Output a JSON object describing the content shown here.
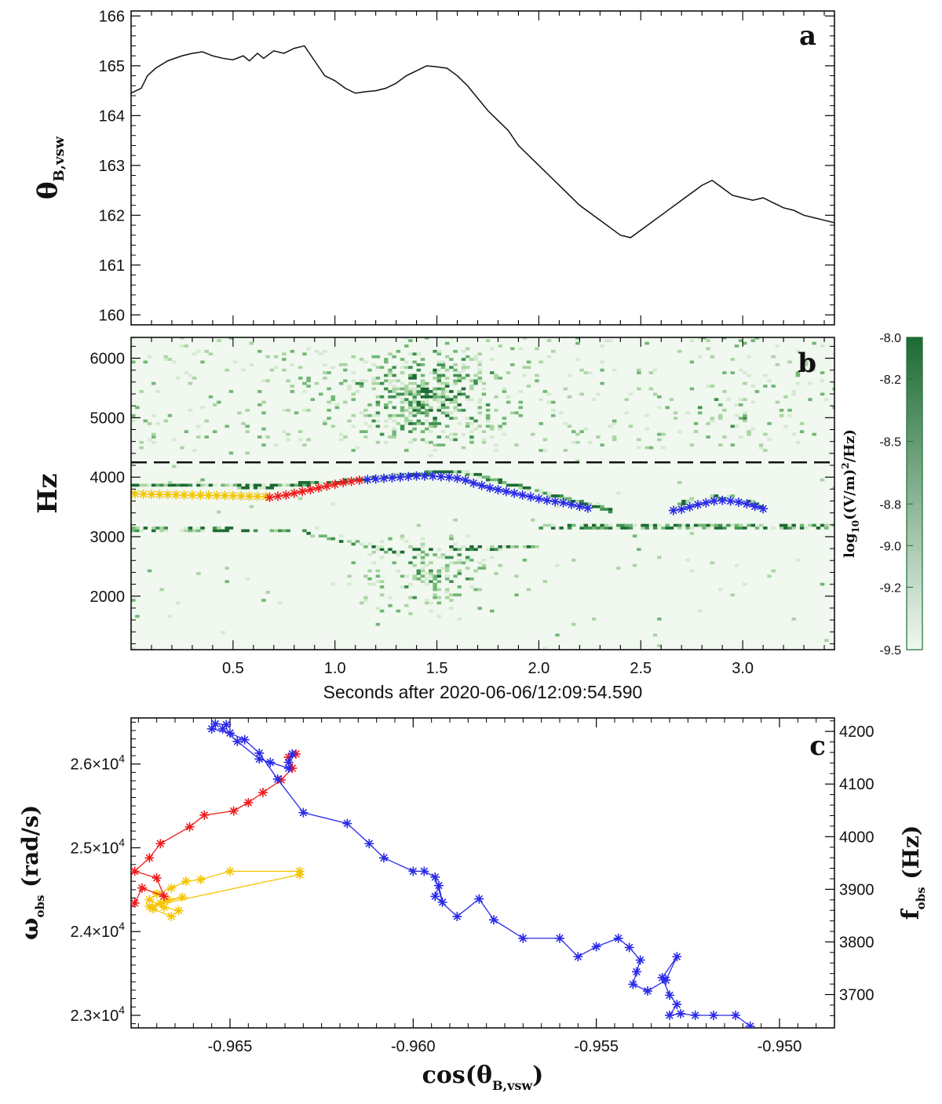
{
  "figure": {
    "panel_labels": [
      "a",
      "b",
      "c"
    ]
  },
  "chart_data": [
    {
      "id": "a",
      "type": "line",
      "ylabel": "θB,vsw",
      "ylabel_main": "θ",
      "ylabel_sub": "B,vsw",
      "xlim": [
        0,
        3.45
      ],
      "ylim": [
        159.8,
        166.1
      ],
      "xticks": [
        0.5,
        1.0,
        1.5,
        2.0,
        2.5,
        3.0
      ],
      "yticks": [
        160,
        161,
        162,
        163,
        164,
        165,
        166
      ],
      "series": [
        {
          "name": "theta",
          "x": [
            0.0,
            0.05,
            0.08,
            0.12,
            0.18,
            0.25,
            0.3,
            0.35,
            0.4,
            0.45,
            0.5,
            0.55,
            0.58,
            0.62,
            0.65,
            0.7,
            0.75,
            0.8,
            0.85,
            0.9,
            0.95,
            1.0,
            1.05,
            1.1,
            1.15,
            1.2,
            1.25,
            1.3,
            1.35,
            1.4,
            1.45,
            1.5,
            1.55,
            1.6,
            1.65,
            1.7,
            1.75,
            1.8,
            1.85,
            1.9,
            1.95,
            2.0,
            2.05,
            2.1,
            2.15,
            2.2,
            2.25,
            2.3,
            2.35,
            2.4,
            2.45,
            2.5,
            2.55,
            2.6,
            2.65,
            2.7,
            2.75,
            2.8,
            2.85,
            2.9,
            2.95,
            3.0,
            3.05,
            3.1,
            3.15,
            3.2,
            3.25,
            3.3,
            3.35,
            3.4,
            3.45
          ],
          "values": [
            164.45,
            164.55,
            164.8,
            164.95,
            165.1,
            165.2,
            165.25,
            165.28,
            165.2,
            165.15,
            165.12,
            165.2,
            165.1,
            165.25,
            165.15,
            165.3,
            165.25,
            165.35,
            165.4,
            165.1,
            164.8,
            164.7,
            164.55,
            164.45,
            164.48,
            164.5,
            164.55,
            164.65,
            164.8,
            164.9,
            165.0,
            164.98,
            164.95,
            164.8,
            164.6,
            164.35,
            164.1,
            163.9,
            163.7,
            163.4,
            163.2,
            163.0,
            162.8,
            162.6,
            162.4,
            162.2,
            162.05,
            161.9,
            161.75,
            161.6,
            161.55,
            161.7,
            161.85,
            162.0,
            162.15,
            162.3,
            162.45,
            162.6,
            162.7,
            162.55,
            162.4,
            162.35,
            162.3,
            162.35,
            162.25,
            162.15,
            162.1,
            162.0,
            161.95,
            161.9,
            161.85
          ]
        }
      ]
    },
    {
      "id": "b",
      "type": "heatmap",
      "ylabel": "Hz",
      "xlabel": "Seconds after 2020-06-06/12:09:54.590",
      "xlim": [
        0,
        3.45
      ],
      "ylim": [
        1100,
        6350
      ],
      "xticks": [
        0.5,
        1.0,
        1.5,
        2.0,
        2.5,
        3.0
      ],
      "xticklabels": [
        "0.5",
        "1.0",
        "1.5",
        "2.0",
        "2.5",
        "3.0"
      ],
      "yticks": [
        2000,
        3000,
        4000,
        5000,
        6000
      ],
      "dashed_line_hz": 4250,
      "colorbar": {
        "label": "log10((V/m)²/Hz)",
        "label_prefix": "log",
        "label_sub": "10",
        "label_rest": "((V/m)",
        "label_sup": "2",
        "label_end": "/Hz)",
        "range": [
          -9.5,
          -8.0
        ],
        "ticks": [
          -8.0,
          -8.2,
          -8.5,
          -8.8,
          -9.0,
          -9.2,
          -9.5
        ],
        "ticklabels": [
          "-8.0",
          "-8.2",
          "-8.5",
          "-8.8",
          "-9.0",
          "-9.2",
          "-9.5"
        ],
        "colors": [
          "#f0f8ef",
          "#1d6b34"
        ]
      },
      "markers": [
        {
          "color": "#f5c400",
          "t": [
            0.02,
            0.06,
            0.1,
            0.14,
            0.18,
            0.22,
            0.26,
            0.3,
            0.34,
            0.38,
            0.42,
            0.46,
            0.5,
            0.54,
            0.58,
            0.62,
            0.66
          ],
          "hz": [
            3720,
            3715,
            3712,
            3710,
            3708,
            3705,
            3700,
            3700,
            3698,
            3695,
            3692,
            3690,
            3688,
            3685,
            3680,
            3678,
            3675
          ]
        },
        {
          "color": "#ee1c1c",
          "t": [
            0.68,
            0.72,
            0.76,
            0.8,
            0.84,
            0.88,
            0.92,
            0.96,
            1.0,
            1.04,
            1.08,
            1.12
          ],
          "hz": [
            3660,
            3680,
            3700,
            3730,
            3760,
            3790,
            3820,
            3850,
            3880,
            3910,
            3930,
            3950
          ]
        },
        {
          "color": "#2a2ae8",
          "t": [
            1.16,
            1.2,
            1.24,
            1.28,
            1.32,
            1.36,
            1.4,
            1.44,
            1.48,
            1.52,
            1.56,
            1.6,
            1.64,
            1.68,
            1.72,
            1.76,
            1.8,
            1.84,
            1.88,
            1.92,
            1.96,
            2.0,
            2.04,
            2.08,
            2.12,
            2.16,
            2.2,
            2.24
          ],
          "hz": [
            3960,
            3970,
            3980,
            3990,
            4000,
            4010,
            4020,
            4020,
            4020,
            4010,
            4000,
            3980,
            3950,
            3900,
            3860,
            3820,
            3790,
            3760,
            3730,
            3700,
            3670,
            3640,
            3610,
            3590,
            3570,
            3540,
            3510,
            3480
          ]
        },
        {
          "color": "#2a2ae8",
          "t": [
            2.66,
            2.7,
            2.74,
            2.78,
            2.82,
            2.86,
            2.9,
            2.94,
            2.98,
            3.02,
            3.06,
            3.1
          ],
          "hz": [
            3440,
            3460,
            3500,
            3540,
            3570,
            3600,
            3610,
            3600,
            3580,
            3550,
            3510,
            3470
          ]
        }
      ]
    },
    {
      "id": "c",
      "type": "scatter",
      "xlabel": "cos(θB,vsw)",
      "xlabel_main": "cos(θ",
      "xlabel_sub": "B,vsw",
      "xlabel_end": ")",
      "ylabel": "ωobs (rad/s)",
      "ylabel_main": "ω",
      "ylabel_sub": "obs",
      "ylabel_rest": " (rad/s)",
      "y2label": "fobs (Hz)",
      "y2label_main": "f",
      "y2label_sub": "obs",
      "y2label_rest": " (Hz)",
      "xlim": [
        -0.9677,
        -0.9485
      ],
      "ylim": [
        22850,
        26550
      ],
      "xticks": [
        -0.965,
        -0.96,
        -0.955,
        -0.95
      ],
      "xticklabels": [
        "-0.965",
        "-0.960",
        "-0.955",
        "-0.950"
      ],
      "yticks": [
        23000,
        24000,
        25000,
        26000
      ],
      "yticklabels_mantissa": [
        "2.3",
        "2.4",
        "2.5",
        "2.6"
      ],
      "yticklabels_base": "×10",
      "yticklabels_exp": "4",
      "y2ticks": [
        3700,
        3800,
        3900,
        4000,
        4100,
        4200
      ],
      "series": [
        {
          "name": "yellow",
          "color": "#f5c400",
          "x": [
            -0.9631,
            -0.965,
            -0.9658,
            -0.9662,
            -0.9666,
            -0.967,
            -0.9672,
            -0.9668,
            -0.9664,
            -0.9666,
            -0.9671,
            -0.9667,
            -0.9663,
            -0.9669,
            -0.9672,
            -0.9631
          ],
          "y": [
            24720,
            24720,
            24620,
            24600,
            24520,
            24450,
            24380,
            24290,
            24250,
            24180,
            24270,
            24380,
            24410,
            24340,
            24300,
            24680
          ]
        },
        {
          "name": "red",
          "color": "#ee1c1c",
          "x": [
            -0.9676,
            -0.9674,
            -0.9668,
            -0.967,
            -0.9676,
            -0.9672,
            -0.9669,
            -0.9661,
            -0.9657,
            -0.9649,
            -0.9645,
            -0.9641,
            -0.9636,
            -0.9633,
            -0.9634,
            -0.9632
          ],
          "y": [
            24340,
            24520,
            24420,
            24640,
            24720,
            24880,
            25050,
            25250,
            25390,
            25440,
            25540,
            25660,
            25810,
            25950,
            26080,
            26120
          ]
        },
        {
          "name": "blue",
          "color": "#2a2ae8",
          "x": [
            -0.9633,
            -0.9634,
            -0.9634,
            -0.9639,
            -0.9642,
            -0.9648,
            -0.9652,
            -0.9651,
            -0.9654,
            -0.9655,
            -0.965,
            -0.9646,
            -0.9642,
            -0.9637,
            -0.963,
            -0.9618,
            -0.9612,
            -0.9608,
            -0.96,
            -0.9597,
            -0.9594,
            -0.9592,
            -0.9593,
            -0.9594,
            -0.9588,
            -0.9582,
            -0.9578,
            -0.957,
            -0.956,
            -0.9555,
            -0.955,
            -0.9544,
            -0.9541,
            -0.9538,
            -0.9539,
            -0.954,
            -0.9536,
            -0.9531,
            -0.9528,
            -0.9532,
            -0.953,
            -0.9528,
            -0.953,
            -0.9527,
            -0.9523,
            -0.9518,
            -0.9512,
            -0.9508
          ],
          "y": [
            26120,
            26020,
            25950,
            26020,
            26060,
            26270,
            26420,
            26470,
            26480,
            26420,
            26370,
            26290,
            26130,
            25820,
            25420,
            25290,
            25050,
            24880,
            24720,
            24720,
            24650,
            24350,
            24550,
            24420,
            24180,
            24390,
            24140,
            23920,
            23920,
            23700,
            23820,
            23920,
            23810,
            23660,
            23520,
            23370,
            23290,
            23420,
            23700,
            23450,
            23240,
            23130,
            23000,
            23020,
            23000,
            23000,
            23000,
            22870
          ]
        }
      ]
    }
  ]
}
